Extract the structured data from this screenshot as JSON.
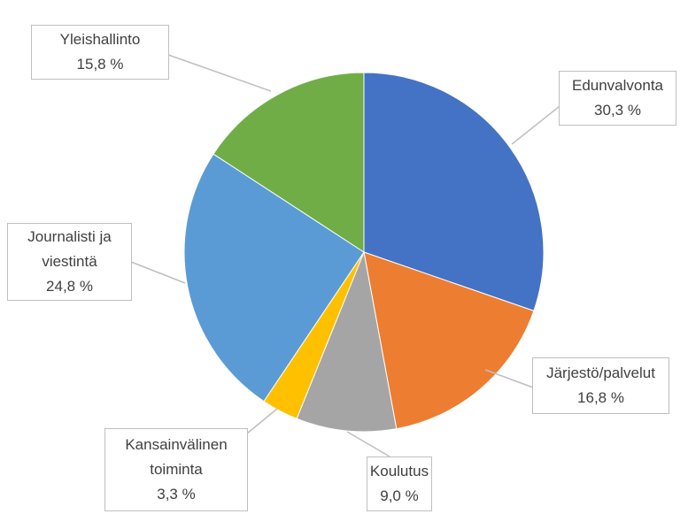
{
  "chart_data": {
    "type": "pie",
    "categories": [
      "Edunvalvonta",
      "Järjestö/palvelut",
      "Koulutus",
      "Kansainvälinen toiminta",
      "Journalisti ja viestintä",
      "Yleishallinto"
    ],
    "values": [
      30.3,
      16.8,
      9.0,
      3.3,
      24.8,
      15.8
    ],
    "value_labels": [
      "30,3 %",
      "16,8 %",
      "9,0 %",
      "3,3 %",
      "24,8 %",
      "15,8 %"
    ],
    "colors": [
      "#4472c4",
      "#ed7d31",
      "#a5a5a5",
      "#ffc000",
      "#5b9bd5",
      "#70ad47"
    ]
  }
}
